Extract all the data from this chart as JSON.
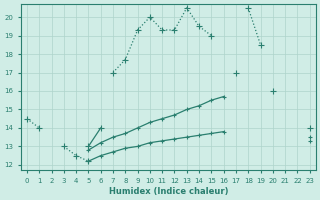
{
  "xlabel": "Humidex (Indice chaleur)",
  "x_values": [
    0,
    1,
    2,
    3,
    4,
    5,
    6,
    7,
    8,
    9,
    10,
    11,
    12,
    13,
    14,
    15,
    16,
    17,
    18,
    19,
    20,
    21,
    22,
    23
  ],
  "line1": [
    14.5,
    14.0,
    null,
    13.0,
    12.5,
    12.2,
    null,
    17.0,
    17.7,
    19.3,
    20.0,
    19.3,
    19.3,
    20.5,
    19.5,
    19.0,
    null,
    null,
    20.5,
    18.5,
    null,
    null,
    null,
    null
  ],
  "line2": [
    null,
    null,
    null,
    null,
    null,
    13.0,
    14.0,
    null,
    null,
    null,
    null,
    null,
    null,
    null,
    null,
    null,
    null,
    17.0,
    null,
    null,
    16.0,
    null,
    null,
    14.0
  ],
  "line3": [
    null,
    null,
    null,
    null,
    null,
    12.8,
    13.2,
    13.5,
    13.7,
    14.0,
    14.3,
    14.5,
    14.7,
    15.0,
    15.2,
    15.5,
    15.7,
    null,
    null,
    null,
    null,
    null,
    null,
    13.5
  ],
  "line4": [
    null,
    null,
    null,
    null,
    null,
    12.2,
    12.5,
    12.7,
    12.9,
    13.0,
    13.2,
    13.3,
    13.4,
    13.5,
    13.6,
    13.7,
    13.8,
    null,
    null,
    null,
    null,
    null,
    null,
    13.3
  ],
  "line_color": "#2a7f6f",
  "bg_color": "#d0ede6",
  "grid_color": "#aed4cb",
  "ylim": [
    12,
    20
  ],
  "xlim": [
    0,
    23
  ]
}
